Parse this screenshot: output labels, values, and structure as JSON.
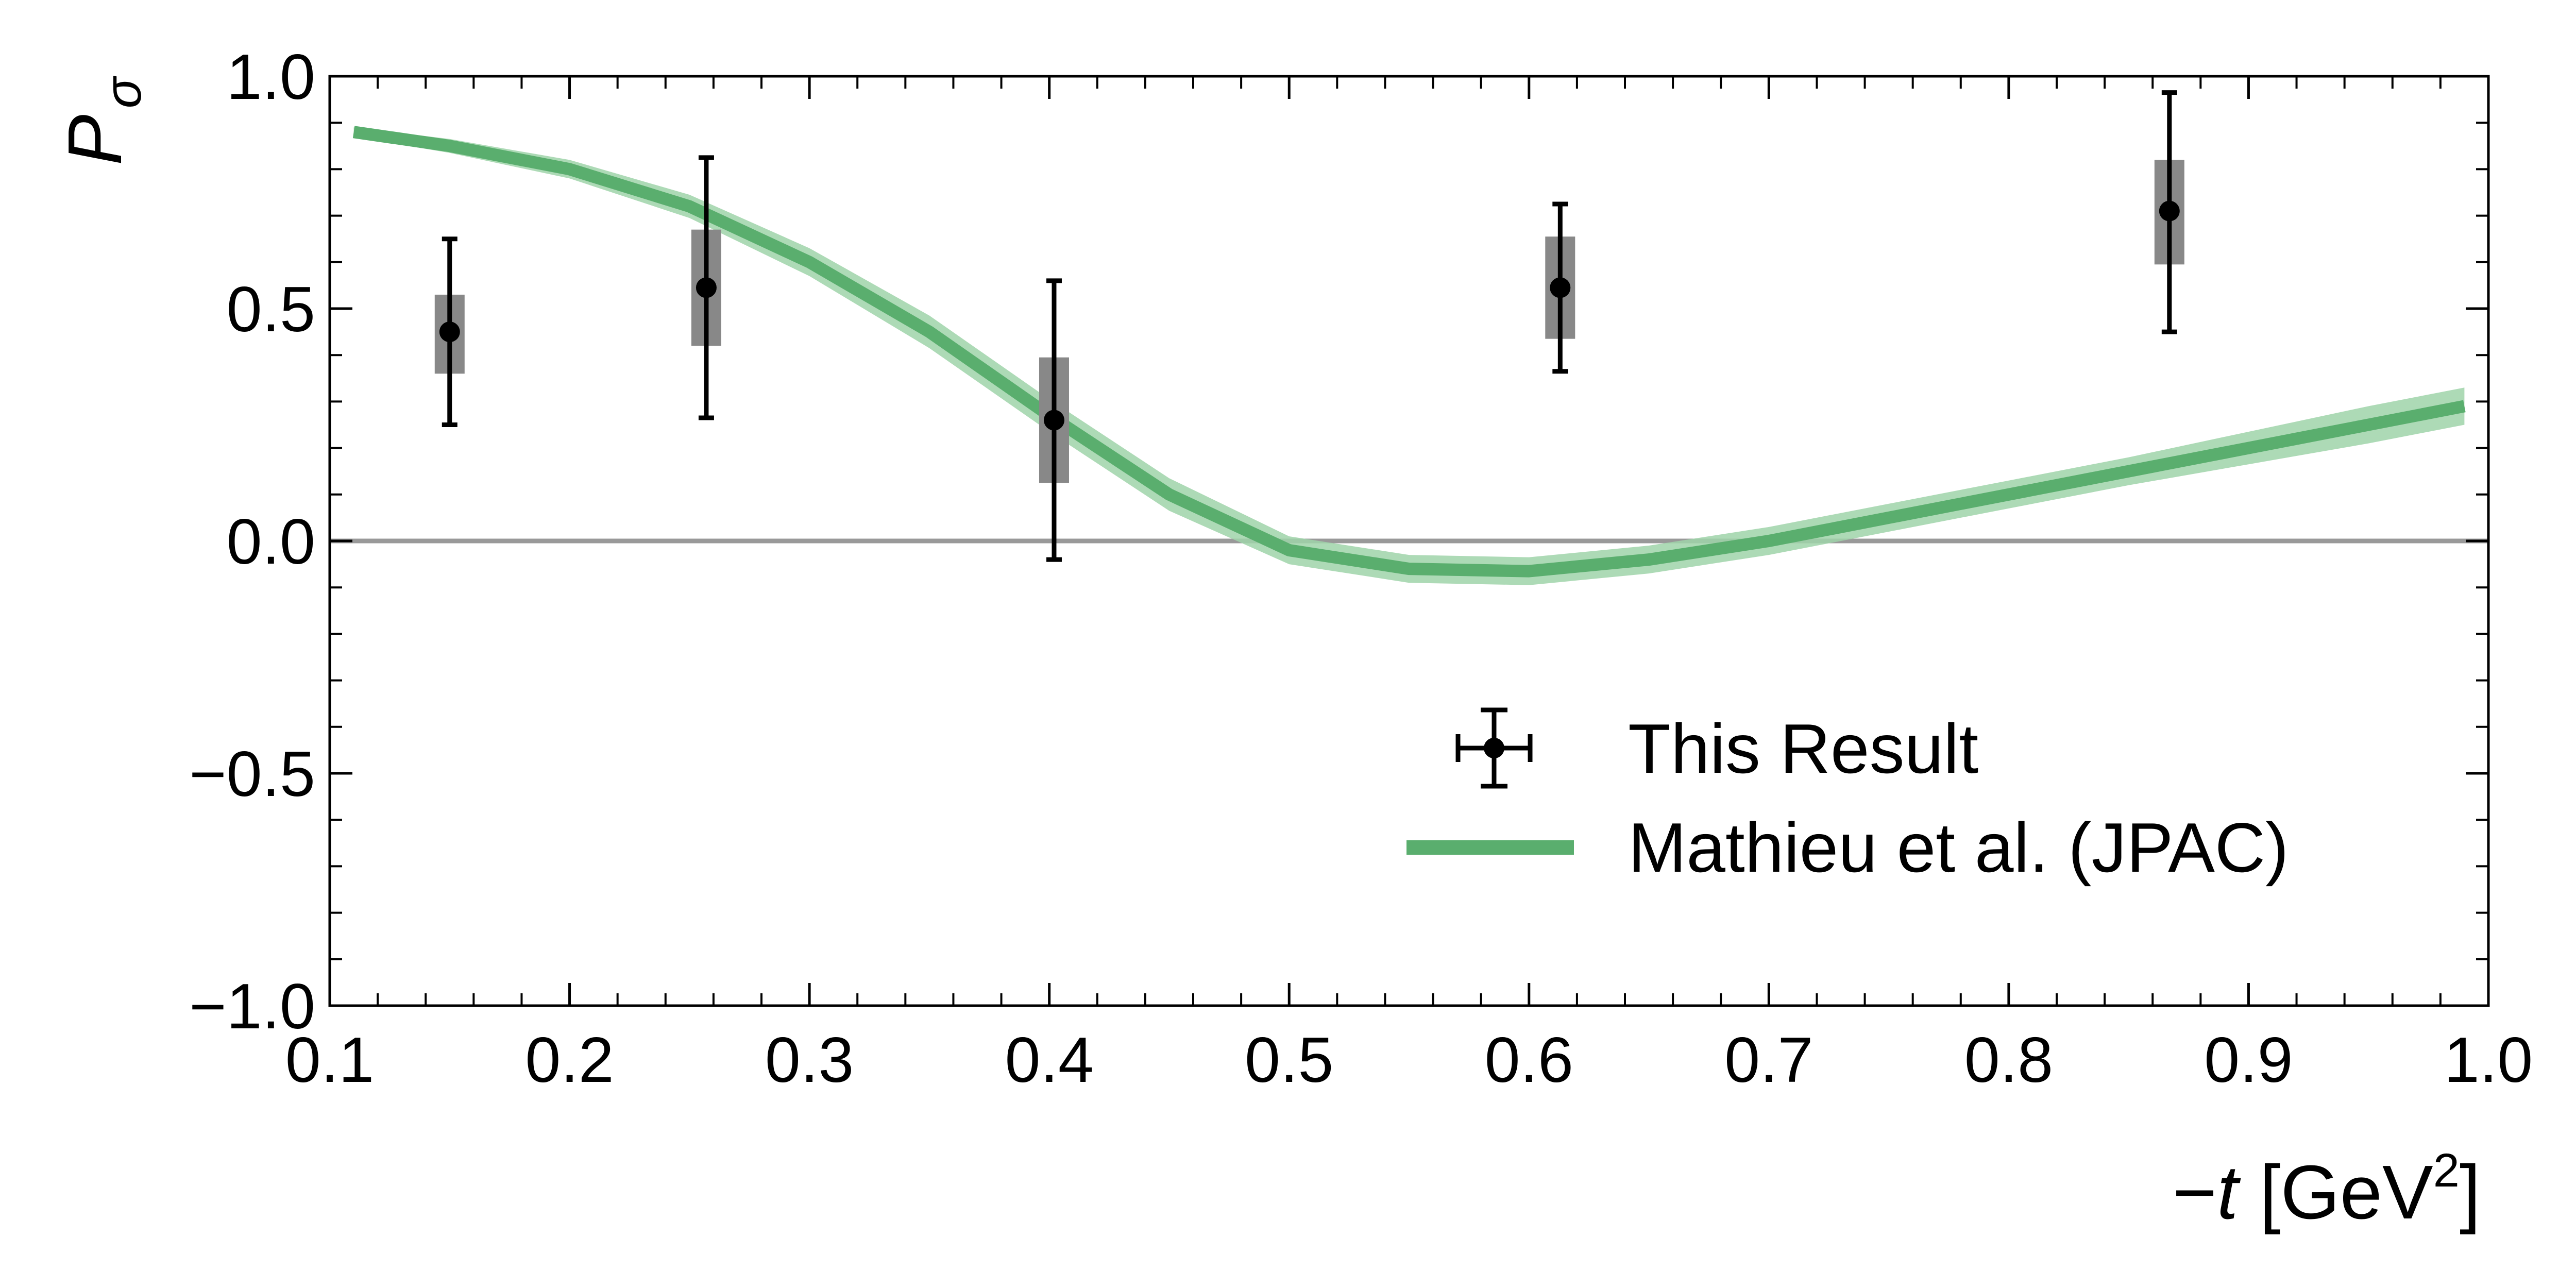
{
  "chart_data": {
    "type": "scatter",
    "xlim": [
      0.1,
      1.0
    ],
    "ylim": [
      -1.0,
      1.0
    ],
    "xticks": [
      "0.1",
      "0.2",
      "0.3",
      "0.4",
      "0.5",
      "0.6",
      "0.7",
      "0.8",
      "0.9",
      "1.0"
    ],
    "yticks": [
      "−1.0",
      "−0.5",
      "0.0",
      "0.5",
      "1.0"
    ],
    "xlabel": {
      "prefix": "−",
      "var": "t",
      "unit": " [GeV",
      "sup": "2",
      "close": "]"
    },
    "ylabel": {
      "main": "P",
      "sub": "σ"
    },
    "grid": false,
    "reference_line_y": 0.0,
    "legend_position": "lower-right",
    "series": [
      {
        "name": "This Result",
        "kind": "points",
        "color": "#000000",
        "syst_color": "#888888",
        "points": [
          {
            "x": 0.15,
            "y": 0.45,
            "stat_lo": 0.25,
            "stat_hi": 0.65,
            "syst_lo": 0.36,
            "syst_hi": 0.53
          },
          {
            "x": 0.257,
            "y": 0.545,
            "stat_lo": 0.265,
            "stat_hi": 0.825,
            "syst_lo": 0.42,
            "syst_hi": 0.67
          },
          {
            "x": 0.402,
            "y": 0.26,
            "stat_lo": -0.04,
            "stat_hi": 0.56,
            "syst_lo": 0.125,
            "syst_hi": 0.395
          },
          {
            "x": 0.613,
            "y": 0.545,
            "stat_lo": 0.365,
            "stat_hi": 0.725,
            "syst_lo": 0.435,
            "syst_hi": 0.655
          },
          {
            "x": 0.867,
            "y": 0.71,
            "stat_lo": 0.45,
            "stat_hi": 0.965,
            "syst_lo": 0.595,
            "syst_hi": 0.82
          }
        ]
      },
      {
        "name": "Mathieu et al. (JPAC)",
        "kind": "band",
        "color": "#5aae6e",
        "band_color": "#9fd3a9",
        "x": [
          0.11,
          0.15,
          0.2,
          0.25,
          0.3,
          0.35,
          0.4,
          0.45,
          0.5,
          0.55,
          0.6,
          0.65,
          0.7,
          0.75,
          0.8,
          0.85,
          0.9,
          0.95,
          0.99
        ],
        "y": [
          0.88,
          0.85,
          0.8,
          0.72,
          0.6,
          0.45,
          0.27,
          0.1,
          -0.02,
          -0.06,
          -0.065,
          -0.04,
          0.0,
          0.05,
          0.1,
          0.15,
          0.2,
          0.25,
          0.29
        ],
        "y_lo": [
          0.87,
          0.835,
          0.78,
          0.695,
          0.57,
          0.415,
          0.235,
          0.065,
          -0.05,
          -0.09,
          -0.095,
          -0.07,
          -0.03,
          0.02,
          0.07,
          0.12,
          0.165,
          0.21,
          0.25
        ],
        "y_hi": [
          0.89,
          0.865,
          0.82,
          0.745,
          0.63,
          0.485,
          0.305,
          0.135,
          0.01,
          -0.03,
          -0.035,
          -0.01,
          0.03,
          0.08,
          0.13,
          0.18,
          0.235,
          0.29,
          0.33
        ]
      }
    ]
  }
}
